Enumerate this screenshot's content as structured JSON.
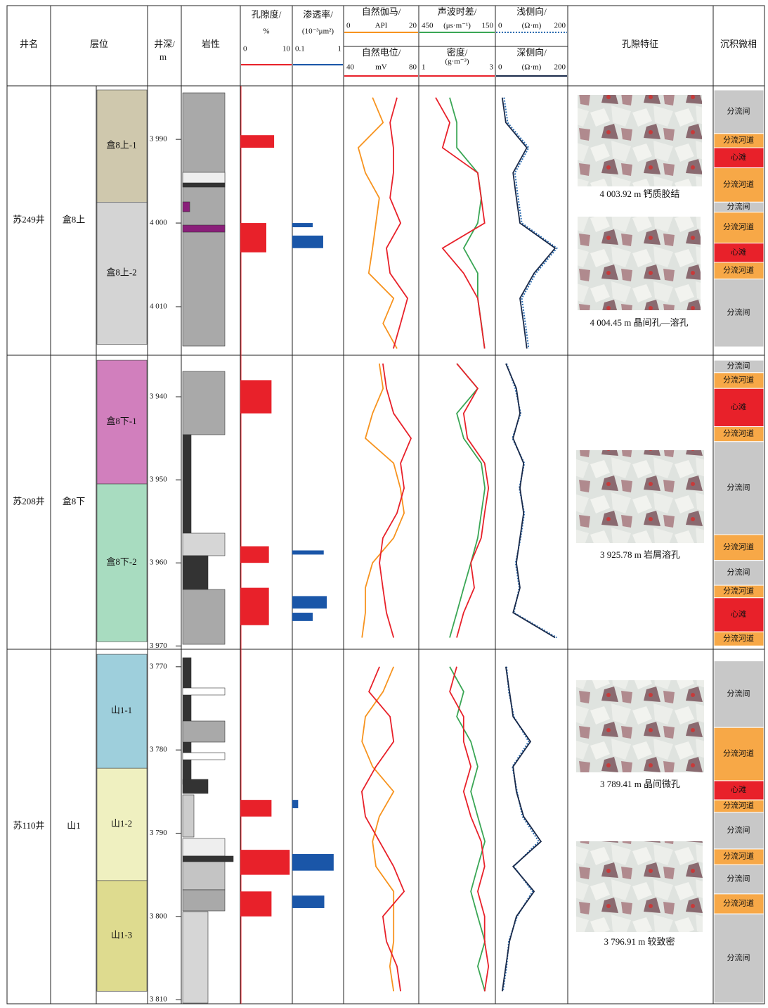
{
  "header": {
    "well": "井名",
    "layer": "层位",
    "depth": "井深/",
    "depth_unit": "m",
    "lithology": "岩性",
    "pore": "孔隙特征",
    "facies": "沉积微相"
  },
  "tracks": {
    "porosity": {
      "title": "孔隙度/",
      "unit": "%",
      "lim": [
        0,
        10
      ],
      "color": "#e8212a"
    },
    "permeability": {
      "title": "渗透率/",
      "unit": "(10⁻³μm²)",
      "lim": [
        0.1,
        1
      ],
      "log": true,
      "color": "#1a56a8"
    },
    "gr": {
      "title": "自然伽马/",
      "unit": "API",
      "lim": [
        0,
        20
      ],
      "color": "#f7931e"
    },
    "sp": {
      "title": "自然电位/",
      "unit": "mV",
      "lim": [
        40,
        80
      ],
      "color": "#e8212a"
    },
    "ac": {
      "title": "声波时差/",
      "unit": "(μs·m⁻¹)",
      "lim": [
        450,
        150
      ],
      "color": "#3aa655"
    },
    "den": {
      "title": "密度/",
      "unit": "(g·m⁻³)",
      "lim": [
        1,
        3
      ],
      "color": "#e8212a"
    },
    "lls": {
      "title": "浅侧向/",
      "unit": "(Ω·m)",
      "lim": [
        0,
        200
      ],
      "color": "#2b6cb0",
      "dashed": true
    },
    "lld": {
      "title": "深侧向/",
      "unit": "(Ω·m)",
      "lim": [
        0,
        200
      ],
      "color": "#1a2a4a"
    }
  },
  "facies_colors": {
    "分流间": "#c8c8c8",
    "分流河道": "#f7a847",
    "心滩": "#e8212a"
  },
  "wells": [
    {
      "name": "苏249井",
      "formation": "盒8上",
      "ylim": [
        3983.6,
        4015.8
      ],
      "depth_ticks": [
        {
          "value": 3990,
          "label": "3 990"
        },
        {
          "value": 4000,
          "label": "4 000"
        },
        {
          "value": 4010,
          "label": "4 010"
        }
      ],
      "zones": [
        {
          "label": "盒8上-1",
          "top": 3984.1,
          "bottom": 3997.5,
          "color": "#cfc8ad"
        },
        {
          "label": "盒8上-2",
          "top": 3997.5,
          "bottom": 4014.5,
          "color": "#d4d4d4"
        }
      ],
      "facies": [
        {
          "label": "分流间",
          "top": 3984.1,
          "bottom": 3989.3
        },
        {
          "label": "分流河道",
          "top": 3989.3,
          "bottom": 3991.0
        },
        {
          "label": "心滩",
          "top": 3991.0,
          "bottom": 3993.4
        },
        {
          "label": "分流河道",
          "top": 3993.4,
          "bottom": 3997.5
        },
        {
          "label": "分流间",
          "top": 3997.5,
          "bottom": 3998.7
        },
        {
          "label": "分流河道",
          "top": 3998.7,
          "bottom": 4002.4
        },
        {
          "label": "心滩",
          "top": 4002.4,
          "bottom": 4004.7
        },
        {
          "label": "分流河道",
          "top": 4004.7,
          "bottom": 4006.7
        },
        {
          "label": "分流间",
          "top": 4006.7,
          "bottom": 4014.8
        }
      ],
      "porosity": [
        {
          "top": 3989.5,
          "bottom": 3991,
          "value": 6.5
        },
        {
          "top": 4000,
          "bottom": 4003.5,
          "value": 5
        }
      ],
      "permeability": [
        {
          "top": 4000,
          "bottom": 4000.5,
          "value": 0.25
        },
        {
          "top": 4001.5,
          "bottom": 4003,
          "value": 0.4
        }
      ],
      "depths": [
        3985,
        3988,
        3991,
        3994,
        3997,
        4000,
        4003,
        4006,
        4009,
        4012,
        4015
      ],
      "curves": {
        "gr": [
          7.7,
          10.5,
          3.9,
          5.8,
          9.5,
          8.6,
          7.7,
          6.7,
          13.3,
          10.5,
          14.2
        ],
        "sp": [
          68.4,
          64.7,
          66.5,
          66.5,
          64.7,
          70.3,
          62.8,
          64.7,
          74,
          70.3,
          66.5
        ],
        "ac": [
          329,
          301,
          301,
          219,
          205,
          219,
          274,
          219,
          219,
          205,
          192
        ],
        "den": [
          1.44,
          1.81,
          1.62,
          2.54,
          2.63,
          2.72,
          1.62,
          2.17,
          2.54,
          2.63,
          2.72
        ],
        "lls": [
          24,
          34,
          92,
          54,
          63,
          73,
          170,
          112,
          73,
          83,
          92
        ],
        "lld": [
          19,
          29,
          87,
          49,
          58,
          68,
          165,
          107,
          68,
          78,
          87
        ]
      },
      "images": [
        {
          "caption": "4 003.92 m  钙质胶结"
        },
        {
          "caption": "4 004.45 m  晶间孔—溶孔"
        }
      ]
    },
    {
      "name": "苏208井",
      "formation": "盒8下",
      "ylim": [
        3935,
        3970.4
      ],
      "depth_ticks": [
        {
          "value": 3940,
          "label": "3 940"
        },
        {
          "value": 3950,
          "label": "3 950"
        },
        {
          "value": 3960,
          "label": "3 960"
        },
        {
          "value": 3970,
          "label": "3 970"
        }
      ],
      "zones": [
        {
          "label": "盒8下-1",
          "top": 3935.6,
          "bottom": 3950.5,
          "color": "#d17fbd"
        },
        {
          "label": "盒8下-2",
          "top": 3950.5,
          "bottom": 3969.5,
          "color": "#a8dcc0"
        }
      ],
      "facies": [
        {
          "label": "分流间",
          "top": 3935.6,
          "bottom": 3937.1
        },
        {
          "label": "分流河道",
          "top": 3937.1,
          "bottom": 3939.0
        },
        {
          "label": "心滩",
          "top": 3939.0,
          "bottom": 3943.6
        },
        {
          "label": "分流河道",
          "top": 3943.6,
          "bottom": 3945.4
        },
        {
          "label": "分流间",
          "top": 3945.4,
          "bottom": 3956.6
        },
        {
          "label": "分流河道",
          "top": 3956.6,
          "bottom": 3959.7
        },
        {
          "label": "分流间",
          "top": 3959.7,
          "bottom": 3962.7
        },
        {
          "label": "分流河道",
          "top": 3962.7,
          "bottom": 3964.2
        },
        {
          "label": "心滩",
          "top": 3964.2,
          "bottom": 3968.3
        },
        {
          "label": "分流河道",
          "top": 3968.3,
          "bottom": 3970.0
        }
      ],
      "porosity": [
        {
          "top": 3938,
          "bottom": 3942,
          "value": 6
        },
        {
          "top": 3958,
          "bottom": 3960,
          "value": 5.5
        },
        {
          "top": 3963,
          "bottom": 3967.5,
          "value": 5.5
        }
      ],
      "permeability": [
        {
          "top": 3958.5,
          "bottom": 3959,
          "value": 0.41
        },
        {
          "top": 3964,
          "bottom": 3965.5,
          "value": 0.47
        },
        {
          "top": 3966,
          "bottom": 3967,
          "value": 0.25
        }
      ],
      "depths": [
        3936,
        3939,
        3942,
        3945,
        3948,
        3951,
        3954,
        3957,
        3960,
        3963,
        3966,
        3969
      ],
      "curves": {
        "gr": [
          9.5,
          10.5,
          7.7,
          5.8,
          13.3,
          15.1,
          16.1,
          13.3,
          7.7,
          5.8,
          5.8,
          4.9
        ],
        "sp": [
          60.9,
          62.8,
          66.6,
          75.9,
          70.3,
          72.2,
          68.4,
          60.9,
          59.1,
          60.9,
          62.8,
          66.6
        ],
        "ac": [
          301,
          219,
          301,
          274,
          205,
          191,
          205,
          219,
          246,
          274,
          301,
          329
        ],
        "den": [
          1.99,
          2.54,
          2.17,
          2.27,
          2.72,
          2.82,
          2.72,
          2.63,
          2.36,
          2.45,
          2.17,
          1.99
        ],
        "lls": [
          31,
          55,
          70,
          47,
          80,
          66,
          80,
          70,
          56,
          66,
          51,
          170
        ],
        "lld": [
          29,
          58,
          68,
          49,
          78,
          68,
          78,
          68,
          58,
          68,
          49,
          165
        ]
      },
      "images": [
        {
          "caption": "3 925.78 m  岩屑溶孔"
        }
      ]
    },
    {
      "name": "苏110井",
      "formation": "山1",
      "ylim": [
        3767.9,
        3810.5
      ],
      "depth_ticks": [
        {
          "value": 3770,
          "label": "3 770"
        },
        {
          "value": 3780,
          "label": "3 780"
        },
        {
          "value": 3790,
          "label": "3 790"
        },
        {
          "value": 3800,
          "label": "3 800"
        },
        {
          "value": 3810,
          "label": "3 810"
        }
      ],
      "zones": [
        {
          "label": "山1-1",
          "top": 3768.5,
          "bottom": 3782.2,
          "color": "#9ecfdc"
        },
        {
          "label": "山1-2",
          "top": 3782.2,
          "bottom": 3795.7,
          "color": "#eff0c0"
        },
        {
          "label": "山1-3",
          "top": 3795.7,
          "bottom": 3809,
          "color": "#dedb8f"
        }
      ],
      "facies": [
        {
          "label": "分流间",
          "top": 3769.3,
          "bottom": 3777.3
        },
        {
          "label": "分流河道",
          "top": 3777.3,
          "bottom": 3783.7
        },
        {
          "label": "心滩",
          "top": 3783.7,
          "bottom": 3786.0
        },
        {
          "label": "分流河道",
          "top": 3786.0,
          "bottom": 3787.5
        },
        {
          "label": "分流间",
          "top": 3787.5,
          "bottom": 3791.9
        },
        {
          "label": "分流河道",
          "top": 3791.9,
          "bottom": 3793.8
        },
        {
          "label": "分流间",
          "top": 3793.8,
          "bottom": 3797.3
        },
        {
          "label": "分流河道",
          "top": 3797.3,
          "bottom": 3799.7
        },
        {
          "label": "分流间",
          "top": 3799.7,
          "bottom": 3810.4
        }
      ],
      "porosity": [
        {
          "top": 3786,
          "bottom": 3788,
          "value": 6
        },
        {
          "top": 3792,
          "bottom": 3795,
          "value": 9.5
        },
        {
          "top": 3797,
          "bottom": 3800,
          "value": 6
        }
      ],
      "permeability": [
        {
          "top": 3786,
          "bottom": 3787,
          "value": 0.13
        },
        {
          "top": 3792.5,
          "bottom": 3794.5,
          "value": 0.64
        },
        {
          "top": 3797.5,
          "bottom": 3799,
          "value": 0.42
        }
      ],
      "depths": [
        3770,
        3773,
        3776,
        3779,
        3782,
        3785,
        3788,
        3791,
        3794,
        3797,
        3800,
        3803,
        3806,
        3809
      ],
      "curves": {
        "gr": [
          13.3,
          10.5,
          5.8,
          4.9,
          7.7,
          13.3,
          9.5,
          7.7,
          8.6,
          13.3,
          13.3,
          13.3,
          12.3,
          13.3
        ],
        "sp": [
          59.1,
          53.5,
          64.7,
          66.6,
          57.2,
          49.7,
          51.6,
          59.1,
          66.6,
          72.2,
          60.9,
          62.8,
          68.4,
          70.3
        ],
        "ac": [
          329,
          274,
          301,
          246,
          219,
          246,
          219,
          191,
          219,
          246,
          219,
          191,
          219,
          191
        ],
        "den": [
          1.99,
          1.81,
          2.17,
          2.17,
          2.36,
          2.17,
          2.36,
          2.63,
          2.72,
          2.54,
          2.72,
          2.72,
          2.82,
          2.72
        ],
        "lls": [
          31,
          37,
          51,
          92,
          47,
          60,
          75,
          120,
          51,
          103,
          60,
          37,
          31,
          21
        ],
        "lld": [
          29,
          39,
          49,
          97,
          49,
          58,
          78,
          126,
          49,
          107,
          58,
          39,
          29,
          19
        ]
      },
      "images": [
        {
          "caption": "3 789.41 m  晶间微孔"
        },
        {
          "caption": "3 796.91 m  较致密"
        }
      ]
    }
  ]
}
